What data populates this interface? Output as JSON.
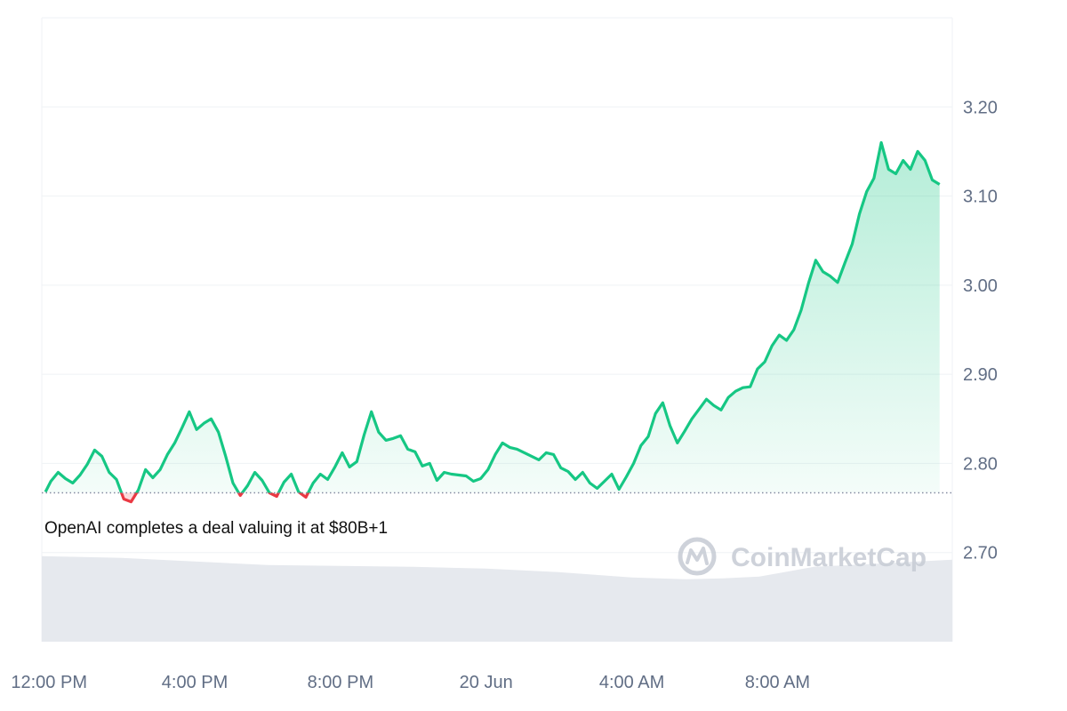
{
  "colors": {
    "up": "#16c784",
    "down": "#ea3943",
    "grid": "#eff2f5",
    "volume": "#e6e9ee",
    "baseline": "#858ca2",
    "text": "#616e85",
    "watermark": "#c9ced6"
  },
  "annotation": "OpenAI completes a deal valuing it at $80B+1",
  "watermark": {
    "text": "CoinMarketCap",
    "icon": "coinmarketcap-logo-icon"
  },
  "chart_data": {
    "type": "area",
    "x_unit": "hours since 12:00 PM, 19 Jun",
    "ylim": [
      2.6,
      3.3
    ],
    "baseline": 2.767,
    "xlim": [
      -0.2,
      24.8
    ],
    "y_ticks": [
      "3.20",
      "3.10",
      "3.00",
      "2.90",
      "2.80",
      "2.70"
    ],
    "y_tick_values": [
      3.2,
      3.1,
      3.0,
      2.9,
      2.8,
      2.7
    ],
    "x_ticks": [
      "12:00 PM",
      "4:00 PM",
      "8:00 PM",
      "20 Jun",
      "4:00 AM",
      "8:00 AM"
    ],
    "x_tick_values": [
      0,
      4,
      8,
      12,
      16,
      20
    ],
    "grid": true,
    "series": [
      {
        "kind": "price",
        "x": [
          -0.1,
          0.05,
          0.25,
          0.45,
          0.65,
          0.85,
          1.05,
          1.25,
          1.45,
          1.65,
          1.85,
          2.05,
          2.25,
          2.45,
          2.65,
          2.85,
          3.05,
          3.25,
          3.45,
          3.65,
          3.85,
          4.05,
          4.25,
          4.45,
          4.65,
          4.85,
          5.05,
          5.25,
          5.45,
          5.65,
          5.85,
          6.05,
          6.25,
          6.45,
          6.65,
          6.85,
          7.05,
          7.25,
          7.45,
          7.65,
          7.85,
          8.05,
          8.25,
          8.45,
          8.65,
          8.85,
          9.05,
          9.25,
          9.45,
          9.65,
          9.85,
          10.05,
          10.25,
          10.45,
          10.65,
          10.85,
          11.05,
          11.25,
          11.45,
          11.65,
          11.85,
          12.05,
          12.25,
          12.45,
          12.65,
          12.85,
          13.05,
          13.25,
          13.45,
          13.65,
          13.85,
          14.05,
          14.25,
          14.45,
          14.65,
          14.85,
          15.05,
          15.25,
          15.45,
          15.65,
          15.85,
          16.05,
          16.25,
          16.45,
          16.65,
          16.85,
          17.05,
          17.25,
          17.45,
          17.65,
          17.85,
          18.05,
          18.25,
          18.45,
          18.65,
          18.85,
          19.05,
          19.25,
          19.45,
          19.65,
          19.85,
          20.05,
          20.25,
          20.45,
          20.65,
          20.85,
          21.05,
          21.25,
          21.45,
          21.65,
          21.85,
          22.05,
          22.25,
          22.45,
          22.65,
          22.85,
          23.05,
          23.25,
          23.45,
          23.65,
          23.85,
          24.05,
          24.25,
          24.45
        ],
        "y": [
          2.768,
          2.78,
          2.79,
          2.783,
          2.778,
          2.787,
          2.799,
          2.815,
          2.808,
          2.79,
          2.782,
          2.76,
          2.757,
          2.77,
          2.793,
          2.784,
          2.793,
          2.81,
          2.823,
          2.84,
          2.858,
          2.838,
          2.845,
          2.85,
          2.835,
          2.808,
          2.778,
          2.764,
          2.775,
          2.79,
          2.781,
          2.767,
          2.763,
          2.779,
          2.788,
          2.768,
          2.762,
          2.778,
          2.788,
          2.782,
          2.796,
          2.812,
          2.796,
          2.802,
          2.832,
          2.858,
          2.835,
          2.826,
          2.828,
          2.831,
          2.816,
          2.813,
          2.797,
          2.8,
          2.781,
          2.79,
          2.788,
          2.787,
          2.786,
          2.78,
          2.783,
          2.793,
          2.81,
          2.823,
          2.818,
          2.816,
          2.812,
          2.808,
          2.804,
          2.812,
          2.81,
          2.795,
          2.791,
          2.782,
          2.79,
          2.778,
          2.772,
          2.78,
          2.788,
          2.771,
          2.785,
          2.8,
          2.82,
          2.83,
          2.856,
          2.868,
          2.842,
          2.823,
          2.836,
          2.85,
          2.861,
          2.872,
          2.865,
          2.86,
          2.874,
          2.881,
          2.885,
          2.886,
          2.906,
          2.914,
          2.932,
          2.944,
          2.938,
          2.95,
          2.972,
          3.002,
          3.028,
          3.015,
          3.01,
          3.003,
          3.025,
          3.046,
          3.08,
          3.105,
          3.12,
          3.16,
          3.13,
          3.125,
          3.14,
          3.13,
          3.15,
          3.14,
          3.118,
          3.113
        ]
      },
      {
        "kind": "volume",
        "x": [
          -0.2,
          2,
          4,
          6,
          8,
          10,
          12,
          14,
          16,
          17.5,
          18.5,
          19.5,
          21,
          23,
          24.8
        ],
        "y": [
          2.696,
          2.694,
          2.69,
          2.686,
          2.685,
          2.684,
          2.682,
          2.678,
          2.672,
          2.67,
          2.671,
          2.673,
          2.684,
          2.688,
          2.692
        ]
      }
    ]
  }
}
